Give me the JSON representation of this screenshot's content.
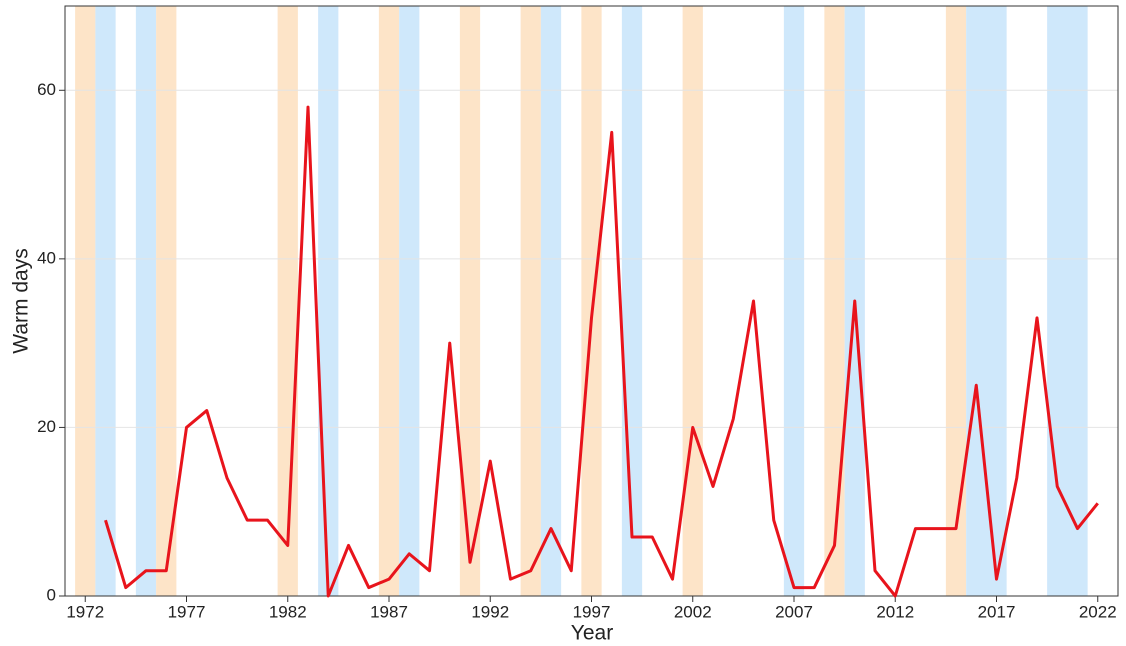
{
  "chart_data": {
    "type": "line",
    "xlabel": "Year",
    "ylabel": "Warm days",
    "x": [
      1973,
      1974,
      1975,
      1976,
      1977,
      1978,
      1979,
      1980,
      1981,
      1982,
      1983,
      1984,
      1985,
      1986,
      1987,
      1988,
      1989,
      1990,
      1991,
      1992,
      1993,
      1994,
      1995,
      1996,
      1997,
      1998,
      1999,
      2000,
      2001,
      2002,
      2003,
      2004,
      2005,
      2006,
      2007,
      2008,
      2009,
      2010,
      2011,
      2012,
      2013,
      2014,
      2015,
      2016,
      2017,
      2018,
      2019,
      2020,
      2021,
      2022
    ],
    "values": [
      9,
      1,
      3,
      3,
      20,
      22,
      14,
      9,
      9,
      6,
      58,
      0,
      6,
      1,
      2,
      5,
      3,
      30,
      4,
      16,
      2,
      3,
      8,
      3,
      33,
      55,
      7,
      7,
      2,
      20,
      13,
      21,
      35,
      9,
      1,
      1,
      6,
      35,
      3,
      0,
      8,
      8,
      8,
      25,
      2,
      14,
      33,
      13,
      8,
      11
    ],
    "color": "#e8141c",
    "xlim": [
      1971,
      2023
    ],
    "xticks": [
      1972,
      1977,
      1982,
      1987,
      1992,
      1997,
      2002,
      2007,
      2012,
      2017,
      2022
    ],
    "ylim": [
      0,
      70
    ],
    "yticks": [
      0,
      20,
      40,
      60
    ],
    "grid": true,
    "bands": [
      {
        "start": 1971.5,
        "end": 1972.5,
        "color": "#fde4c8"
      },
      {
        "start": 1972.5,
        "end": 1973.5,
        "color": "#cfe8fb"
      },
      {
        "start": 1974.5,
        "end": 1975.5,
        "color": "#cfe8fb"
      },
      {
        "start": 1975.5,
        "end": 1976.5,
        "color": "#fde4c8"
      },
      {
        "start": 1981.5,
        "end": 1982.5,
        "color": "#fde4c8"
      },
      {
        "start": 1983.5,
        "end": 1984.5,
        "color": "#cfe8fb"
      },
      {
        "start": 1986.5,
        "end": 1987.5,
        "color": "#fde4c8"
      },
      {
        "start": 1987.5,
        "end": 1988.5,
        "color": "#cfe8fb"
      },
      {
        "start": 1990.5,
        "end": 1991.5,
        "color": "#fde4c8"
      },
      {
        "start": 1993.5,
        "end": 1994.5,
        "color": "#fde4c8"
      },
      {
        "start": 1994.5,
        "end": 1995.5,
        "color": "#cfe8fb"
      },
      {
        "start": 1996.5,
        "end": 1997.5,
        "color": "#fde4c8"
      },
      {
        "start": 1998.5,
        "end": 1999.5,
        "color": "#cfe8fb"
      },
      {
        "start": 2001.5,
        "end": 2002.5,
        "color": "#fde4c8"
      },
      {
        "start": 2006.5,
        "end": 2007.5,
        "color": "#cfe8fb"
      },
      {
        "start": 2008.5,
        "end": 2009.5,
        "color": "#fde4c8"
      },
      {
        "start": 2009.5,
        "end": 2010.5,
        "color": "#cfe8fb"
      },
      {
        "start": 2014.5,
        "end": 2015.5,
        "color": "#fde4c8"
      },
      {
        "start": 2015.5,
        "end": 2017.5,
        "color": "#cfe8fb"
      },
      {
        "start": 2019.5,
        "end": 2021.5,
        "color": "#cfe8fb"
      }
    ]
  }
}
